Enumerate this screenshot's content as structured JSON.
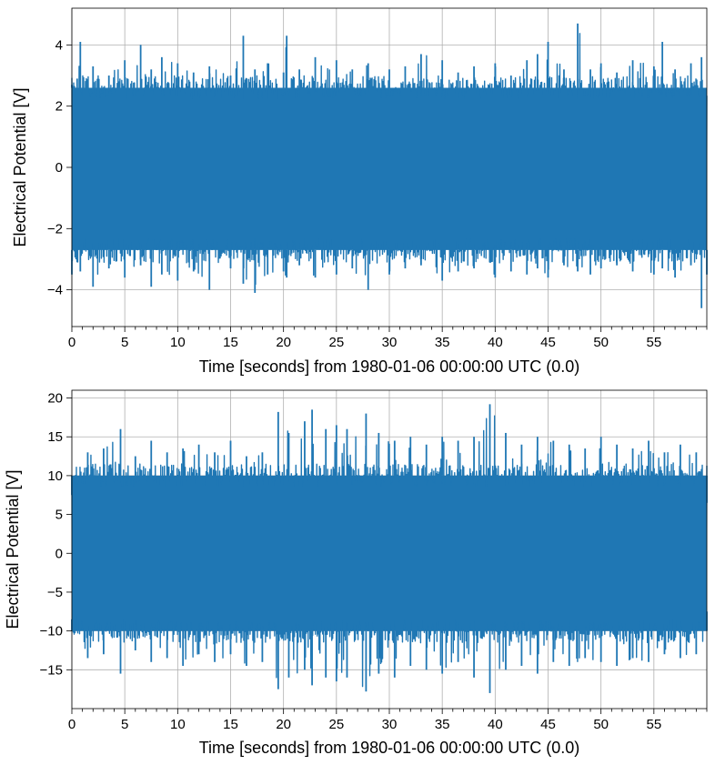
{
  "chart_data": [
    {
      "type": "line",
      "title": "",
      "xlabel": "Time [seconds] from 1980-01-06 00:00:00 UTC (0.0)",
      "ylabel": "Electrical Potential [V]",
      "xlim": [
        0,
        60
      ],
      "ylim": [
        -5.2,
        5.2
      ],
      "xticks": [
        0,
        5,
        10,
        15,
        20,
        25,
        30,
        35,
        40,
        45,
        50,
        55
      ],
      "xtick_labels": [
        "0",
        "5",
        "10",
        "15",
        "20",
        "25",
        "30",
        "35",
        "40",
        "45",
        "50",
        "55"
      ],
      "yticks": [
        -4,
        -2,
        0,
        2,
        4
      ],
      "ytick_labels": [
        "−4",
        "−2",
        "0",
        "2",
        "4"
      ],
      "grid": true,
      "series": [
        {
          "name": "electrical-potential",
          "color": "#1f77b4",
          "envelope": {
            "x": [
              0,
              0.5,
              0.8,
              2,
              3.5,
              5,
              6.5,
              7.5,
              8.5,
              10,
              11.5,
              13,
              15,
              16.2,
              17.3,
              18.5,
              20,
              20.3,
              21.5,
              23,
              25,
              26.5,
              28,
              30,
              31.5,
              33,
              35,
              36.5,
              38,
              40,
              41.5,
              43,
              44,
              45,
              46.5,
              47.8,
              49,
              50,
              51.5,
              53,
              55,
              55.8,
              57,
              58.5,
              59.5,
              60
            ],
            "upper": [
              2.7,
              2.9,
              4.1,
              3.3,
              3.0,
              3.5,
              4.0,
              3.2,
              3.6,
              3.4,
              3.1,
              3.3,
              3.0,
              4.3,
              3.2,
              3.4,
              3.1,
              4.3,
              3.2,
              3.6,
              3.5,
              3.2,
              3.4,
              3.2,
              3.3,
              3.7,
              3.5,
              3.1,
              3.3,
              3.4,
              3.0,
              3.5,
              3.7,
              4.1,
              3.2,
              4.7,
              3.2,
              3.4,
              3.1,
              3.5,
              3.3,
              4.1,
              3.2,
              3.4,
              3.6,
              2.6
            ],
            "lower": [
              -3.5,
              -3.1,
              -3.4,
              -3.9,
              -3.3,
              -3.6,
              -3.2,
              -3.9,
              -3.5,
              -3.7,
              -3.4,
              -4.0,
              -3.3,
              -3.8,
              -4.1,
              -3.5,
              -3.4,
              -3.6,
              -3.2,
              -3.6,
              -3.5,
              -3.3,
              -4.0,
              -3.5,
              -3.3,
              -3.2,
              -3.7,
              -3.4,
              -3.3,
              -3.6,
              -3.4,
              -3.5,
              -3.3,
              -3.6,
              -3.2,
              -3.4,
              -3.5,
              -3.3,
              -3.2,
              -3.4,
              -3.5,
              -3.3,
              -3.6,
              -3.2,
              -4.6,
              -3.5
            ],
            "body_upper": 2.6,
            "body_lower": -2.7
          }
        }
      ]
    },
    {
      "type": "line",
      "title": "",
      "xlabel": "Time [seconds] from 1980-01-06 00:00:00 UTC (0.0)",
      "ylabel": "Electrical Potential [V]",
      "xlim": [
        0,
        60
      ],
      "ylim": [
        -20,
        21
      ],
      "xticks": [
        0,
        5,
        10,
        15,
        20,
        25,
        30,
        35,
        40,
        45,
        50,
        55
      ],
      "xtick_labels": [
        "0",
        "5",
        "10",
        "15",
        "20",
        "25",
        "30",
        "35",
        "40",
        "45",
        "50",
        "55"
      ],
      "yticks": [
        -15,
        -10,
        -5,
        0,
        5,
        10,
        15,
        20
      ],
      "ytick_labels": [
        "−15",
        "−10",
        "−5",
        "0",
        "5",
        "10",
        "15",
        "20"
      ],
      "grid": true,
      "series": [
        {
          "name": "electrical-potential",
          "color": "#1f77b4",
          "envelope": {
            "x": [
              0,
              1.5,
              3,
              4.6,
              6,
              7.5,
              9,
              10.5,
              12,
              13.5,
              15,
              16.5,
              18,
              19.5,
              20.5,
              22,
              22.7,
              24,
              25,
              26,
              27.8,
              29,
              30.5,
              32,
              33.5,
              35,
              36.5,
              38,
              39.5,
              41,
              42.5,
              44,
              45.5,
              47,
              48.5,
              50,
              51.5,
              53,
              54.5,
              56,
              57.5,
              59,
              60
            ],
            "upper": [
              7.5,
              13.0,
              13.5,
              16.0,
              12.5,
              14.5,
              13.0,
              13.5,
              14.0,
              13.0,
              14.5,
              12.5,
              13.0,
              18.2,
              15.5,
              17.0,
              18.5,
              16.0,
              16.5,
              16.0,
              18.0,
              15.5,
              14.5,
              15.0,
              14.0,
              15.0,
              14.5,
              15.0,
              19.2,
              15.5,
              14.0,
              15.0,
              14.5,
              14.0,
              13.5,
              15.0,
              14.0,
              13.5,
              14.5,
              13.0,
              14.0,
              13.0,
              6.5
            ],
            "lower": [
              -8.5,
              -13.5,
              -13.0,
              -15.5,
              -12.5,
              -14.0,
              -13.5,
              -14.5,
              -13.0,
              -14.0,
              -13.0,
              -14.5,
              -14.0,
              -17.5,
              -16.0,
              -15.0,
              -17.0,
              -16.0,
              -16.5,
              -16.0,
              -17.8,
              -15.5,
              -16.0,
              -14.5,
              -15.0,
              -15.5,
              -14.0,
              -16.0,
              -18.0,
              -15.0,
              -14.5,
              -15.5,
              -14.0,
              -14.5,
              -13.5,
              -14.0,
              -14.5,
              -13.5,
              -14.0,
              -13.0,
              -13.5,
              -13.0,
              -7.5
            ],
            "body_upper": 10.0,
            "body_lower": -10.0
          }
        }
      ]
    }
  ]
}
